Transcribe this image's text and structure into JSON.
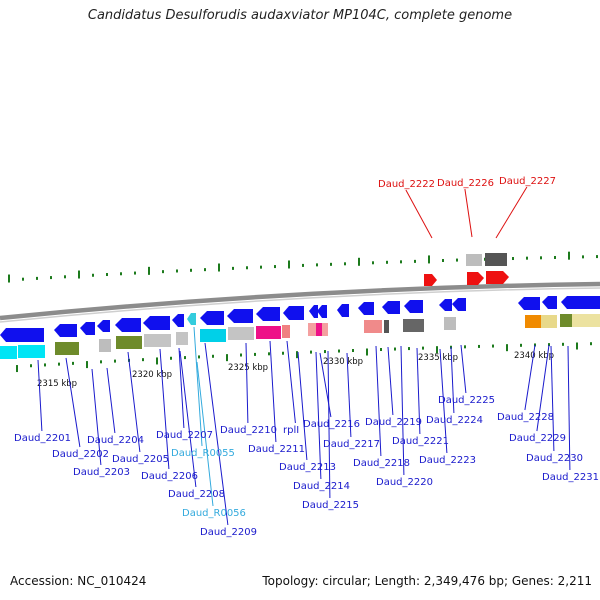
{
  "title": "Candidatus Desulforudis audaxviator MP104C, complete genome",
  "footer": {
    "accession": "Accession: NC_010424",
    "summary": "Topology: circular; Length: 2,349,476 bp; Genes: 2,211"
  },
  "colors": {
    "forward_gene": "#1010ee",
    "reverse_gene": "#1010ee",
    "highlight_gene": "#ee1111",
    "rna_label": "#33aadd",
    "label": "#1a1acc",
    "highlight_label": "#dd1111",
    "tick": "#1c7a1c"
  },
  "scale_labels": [
    "2315 kbp",
    "2320 kbp",
    "2325 kbp",
    "2330 kbp",
    "2335 kbp",
    "2340 kbp"
  ],
  "gene_labels": [
    {
      "id": "Daud_2201",
      "kind": "gene"
    },
    {
      "id": "Daud_2202",
      "kind": "gene"
    },
    {
      "id": "Daud_2203",
      "kind": "gene"
    },
    {
      "id": "Daud_2204",
      "kind": "gene"
    },
    {
      "id": "Daud_2205",
      "kind": "gene"
    },
    {
      "id": "Daud_2206",
      "kind": "gene"
    },
    {
      "id": "Daud_2207",
      "kind": "gene"
    },
    {
      "id": "Daud_R0055",
      "kind": "rna"
    },
    {
      "id": "Daud_2208",
      "kind": "gene"
    },
    {
      "id": "Daud_R0056",
      "kind": "rna"
    },
    {
      "id": "Daud_2209",
      "kind": "gene"
    },
    {
      "id": "Daud_2210",
      "kind": "gene"
    },
    {
      "id": "Daud_2211",
      "kind": "gene"
    },
    {
      "id": "rplI",
      "kind": "gene"
    },
    {
      "id": "Daud_2213",
      "kind": "gene"
    },
    {
      "id": "Daud_2214",
      "kind": "gene"
    },
    {
      "id": "Daud_2215",
      "kind": "gene"
    },
    {
      "id": "Daud_2216",
      "kind": "gene"
    },
    {
      "id": "Daud_2217",
      "kind": "gene"
    },
    {
      "id": "Daud_2218",
      "kind": "gene"
    },
    {
      "id": "Daud_2219",
      "kind": "gene"
    },
    {
      "id": "Daud_2220",
      "kind": "gene"
    },
    {
      "id": "Daud_2221",
      "kind": "gene"
    },
    {
      "id": "Daud_2222",
      "kind": "highlight"
    },
    {
      "id": "Daud_2223",
      "kind": "gene"
    },
    {
      "id": "Daud_2224",
      "kind": "gene"
    },
    {
      "id": "Daud_2225",
      "kind": "gene"
    },
    {
      "id": "Daud_2226",
      "kind": "highlight"
    },
    {
      "id": "Daud_2227",
      "kind": "highlight"
    },
    {
      "id": "Daud_2228",
      "kind": "gene"
    },
    {
      "id": "Daud_2229",
      "kind": "gene"
    },
    {
      "id": "Daud_2230",
      "kind": "gene"
    },
    {
      "id": "Daud_2231",
      "kind": "gene"
    }
  ]
}
